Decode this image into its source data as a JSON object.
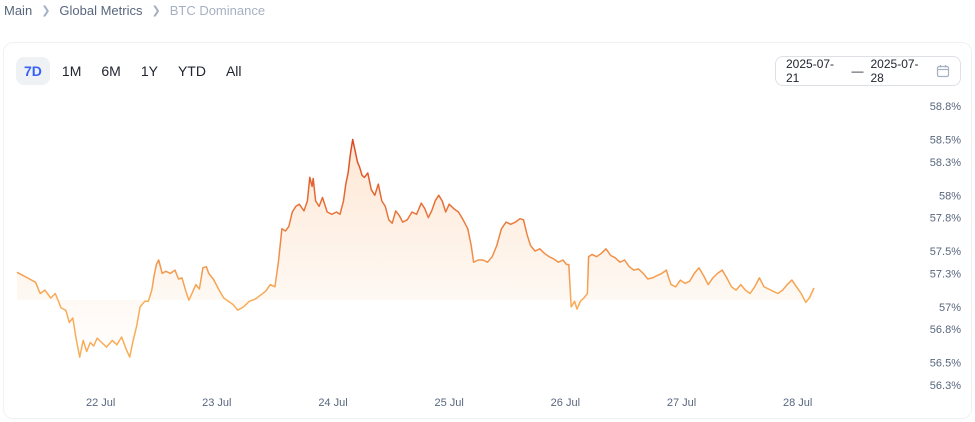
{
  "breadcrumb": {
    "items": [
      "Main",
      "Global Metrics"
    ],
    "current": "BTC Dominance"
  },
  "range_tabs": [
    {
      "label": "7D",
      "active": true
    },
    {
      "label": "1M",
      "active": false
    },
    {
      "label": "6M",
      "active": false
    },
    {
      "label": "1Y",
      "active": false
    },
    {
      "label": "YTD",
      "active": false
    },
    {
      "label": "All",
      "active": false
    }
  ],
  "date_range": {
    "start": "2025-07-21",
    "separator": "—",
    "end": "2025-07-28",
    "icon": "calendar-icon"
  },
  "colors": {
    "line_low": "#f9ac57",
    "line_high": "#d9401f",
    "fill": "#fde3cc",
    "active_tab": "#3861fb"
  },
  "chart_data": {
    "type": "line",
    "title": "",
    "xlabel": "",
    "ylabel": "",
    "x_range": [
      -0.72,
      7.07
    ],
    "ylim": [
      56.3,
      58.8
    ],
    "y_ticks": [
      {
        "value": 58.8,
        "label": "58.8%"
      },
      {
        "value": 58.5,
        "label": "58.5%"
      },
      {
        "value": 58.3,
        "label": "58.3%"
      },
      {
        "value": 58.0,
        "label": "58%"
      },
      {
        "value": 57.8,
        "label": "57.8%"
      },
      {
        "value": 57.5,
        "label": "57.5%"
      },
      {
        "value": 57.3,
        "label": "57.3%"
      },
      {
        "value": 57.0,
        "label": "57%"
      },
      {
        "value": 56.8,
        "label": "56.8%"
      },
      {
        "value": 56.5,
        "label": "56.5%"
      },
      {
        "value": 56.3,
        "label": "56.3%"
      }
    ],
    "x_ticks": [
      {
        "value": 0,
        "label": "22 Jul"
      },
      {
        "value": 1,
        "label": "23 Jul"
      },
      {
        "value": 2,
        "label": "24 Jul"
      },
      {
        "value": 3,
        "label": "25 Jul"
      },
      {
        "value": 4,
        "label": "26 Jul"
      },
      {
        "value": 5,
        "label": "27 Jul"
      },
      {
        "value": 6,
        "label": "28 Jul"
      }
    ],
    "grid": false,
    "legend": "none",
    "series": [
      {
        "points": [
          [
            -0.72,
            57.31
          ],
          [
            -0.63,
            57.26
          ],
          [
            -0.56,
            57.22
          ],
          [
            -0.52,
            57.12
          ],
          [
            -0.48,
            57.15
          ],
          [
            -0.43,
            57.08
          ],
          [
            -0.39,
            57.12
          ],
          [
            -0.34,
            56.99
          ],
          [
            -0.3,
            56.97
          ],
          [
            -0.27,
            56.86
          ],
          [
            -0.24,
            56.9
          ],
          [
            -0.21,
            56.71
          ],
          [
            -0.18,
            56.55
          ],
          [
            -0.15,
            56.7
          ],
          [
            -0.12,
            56.6
          ],
          [
            -0.09,
            56.68
          ],
          [
            -0.06,
            56.65
          ],
          [
            -0.03,
            56.72
          ],
          [
            0.0,
            56.69
          ],
          [
            0.05,
            56.64
          ],
          [
            0.1,
            56.7
          ],
          [
            0.14,
            56.66
          ],
          [
            0.18,
            56.73
          ],
          [
            0.22,
            56.62
          ],
          [
            0.25,
            56.55
          ],
          [
            0.28,
            56.7
          ],
          [
            0.31,
            56.83
          ],
          [
            0.34,
            57.0
          ],
          [
            0.38,
            57.05
          ],
          [
            0.41,
            57.05
          ],
          [
            0.44,
            57.15
          ],
          [
            0.46,
            57.28
          ],
          [
            0.48,
            57.38
          ],
          [
            0.5,
            57.42
          ],
          [
            0.53,
            57.3
          ],
          [
            0.56,
            57.32
          ],
          [
            0.6,
            57.3
          ],
          [
            0.64,
            57.33
          ],
          [
            0.67,
            57.25
          ],
          [
            0.7,
            57.26
          ],
          [
            0.73,
            57.15
          ],
          [
            0.76,
            57.06
          ],
          [
            0.79,
            57.13
          ],
          [
            0.82,
            57.2
          ],
          [
            0.85,
            57.16
          ],
          [
            0.88,
            57.35
          ],
          [
            0.91,
            57.36
          ],
          [
            0.93,
            57.3
          ],
          [
            0.97,
            57.25
          ],
          [
            1.02,
            57.15
          ],
          [
            1.06,
            57.08
          ],
          [
            1.1,
            57.05
          ],
          [
            1.14,
            57.02
          ],
          [
            1.18,
            56.97
          ],
          [
            1.23,
            57.0
          ],
          [
            1.28,
            57.05
          ],
          [
            1.33,
            57.07
          ],
          [
            1.37,
            57.1
          ],
          [
            1.42,
            57.14
          ],
          [
            1.46,
            57.2
          ],
          [
            1.5,
            57.18
          ],
          [
            1.53,
            57.4
          ],
          [
            1.56,
            57.7
          ],
          [
            1.59,
            57.68
          ],
          [
            1.62,
            57.72
          ],
          [
            1.65,
            57.85
          ],
          [
            1.68,
            57.9
          ],
          [
            1.71,
            57.92
          ],
          [
            1.75,
            57.86
          ],
          [
            1.78,
            57.95
          ],
          [
            1.8,
            58.16
          ],
          [
            1.82,
            58.08
          ],
          [
            1.83,
            58.15
          ],
          [
            1.85,
            57.95
          ],
          [
            1.88,
            57.9
          ],
          [
            1.91,
            57.98
          ],
          [
            1.95,
            57.85
          ],
          [
            1.99,
            57.83
          ],
          [
            2.03,
            57.85
          ],
          [
            2.06,
            57.83
          ],
          [
            2.09,
            57.95
          ],
          [
            2.11,
            58.1
          ],
          [
            2.13,
            58.2
          ],
          [
            2.15,
            58.37
          ],
          [
            2.17,
            58.5
          ],
          [
            2.19,
            58.4
          ],
          [
            2.21,
            58.3
          ],
          [
            2.23,
            58.25
          ],
          [
            2.25,
            58.18
          ],
          [
            2.27,
            58.16
          ],
          [
            2.3,
            58.2
          ],
          [
            2.33,
            58.05
          ],
          [
            2.36,
            58.0
          ],
          [
            2.39,
            58.1
          ],
          [
            2.42,
            57.95
          ],
          [
            2.45,
            57.9
          ],
          [
            2.48,
            57.78
          ],
          [
            2.51,
            57.75
          ],
          [
            2.54,
            57.86
          ],
          [
            2.57,
            57.82
          ],
          [
            2.6,
            57.76
          ],
          [
            2.64,
            57.78
          ],
          [
            2.68,
            57.85
          ],
          [
            2.72,
            57.83
          ],
          [
            2.76,
            57.93
          ],
          [
            2.79,
            57.88
          ],
          [
            2.82,
            57.8
          ],
          [
            2.85,
            57.86
          ],
          [
            2.88,
            57.95
          ],
          [
            2.91,
            58.0
          ],
          [
            2.94,
            57.95
          ],
          [
            2.97,
            57.85
          ],
          [
            3.0,
            57.92
          ],
          [
            3.04,
            57.88
          ],
          [
            3.08,
            57.85
          ],
          [
            3.12,
            57.78
          ],
          [
            3.16,
            57.7
          ],
          [
            3.19,
            57.55
          ],
          [
            3.21,
            57.4
          ],
          [
            3.25,
            57.42
          ],
          [
            3.29,
            57.42
          ],
          [
            3.33,
            57.4
          ],
          [
            3.37,
            57.45
          ],
          [
            3.41,
            57.55
          ],
          [
            3.45,
            57.7
          ],
          [
            3.49,
            57.76
          ],
          [
            3.53,
            57.74
          ],
          [
            3.57,
            57.76
          ],
          [
            3.61,
            57.79
          ],
          [
            3.64,
            57.78
          ],
          [
            3.67,
            57.65
          ],
          [
            3.7,
            57.55
          ],
          [
            3.74,
            57.5
          ],
          [
            3.78,
            57.52
          ],
          [
            3.82,
            57.48
          ],
          [
            3.86,
            57.45
          ],
          [
            3.9,
            57.43
          ],
          [
            3.94,
            57.4
          ],
          [
            3.98,
            57.42
          ],
          [
            4.01,
            57.38
          ],
          [
            4.03,
            57.38
          ],
          [
            4.05,
            57.0
          ],
          [
            4.08,
            57.05
          ],
          [
            4.1,
            56.98
          ],
          [
            4.13,
            57.05
          ],
          [
            4.16,
            57.08
          ],
          [
            4.19,
            57.12
          ],
          [
            4.2,
            57.45
          ],
          [
            4.23,
            57.47
          ],
          [
            4.27,
            57.45
          ],
          [
            4.31,
            57.48
          ],
          [
            4.35,
            57.52
          ],
          [
            4.39,
            57.46
          ],
          [
            4.43,
            57.44
          ],
          [
            4.47,
            57.4
          ],
          [
            4.51,
            57.42
          ],
          [
            4.55,
            57.36
          ],
          [
            4.59,
            57.33
          ],
          [
            4.63,
            57.34
          ],
          [
            4.67,
            57.3
          ],
          [
            4.71,
            57.25
          ],
          [
            4.75,
            57.26
          ],
          [
            4.79,
            57.28
          ],
          [
            4.83,
            57.3
          ],
          [
            4.87,
            57.33
          ],
          [
            4.89,
            57.26
          ],
          [
            4.91,
            57.2
          ],
          [
            4.95,
            57.18
          ],
          [
            4.99,
            57.24
          ],
          [
            5.03,
            57.21
          ],
          [
            5.07,
            57.23
          ],
          [
            5.11,
            57.3
          ],
          [
            5.15,
            57.35
          ],
          [
            5.19,
            57.28
          ],
          [
            5.23,
            57.2
          ],
          [
            5.27,
            57.26
          ],
          [
            5.31,
            57.3
          ],
          [
            5.35,
            57.33
          ],
          [
            5.39,
            57.26
          ],
          [
            5.43,
            57.18
          ],
          [
            5.47,
            57.15
          ],
          [
            5.51,
            57.2
          ],
          [
            5.55,
            57.15
          ],
          [
            5.59,
            57.12
          ],
          [
            5.63,
            57.18
          ],
          [
            5.67,
            57.26
          ],
          [
            5.71,
            57.18
          ],
          [
            5.75,
            57.16
          ],
          [
            5.79,
            57.14
          ],
          [
            5.83,
            57.12
          ],
          [
            5.87,
            57.15
          ],
          [
            5.91,
            57.2
          ],
          [
            5.95,
            57.24
          ],
          [
            5.99,
            57.18
          ],
          [
            6.03,
            57.12
          ],
          [
            6.07,
            57.04
          ],
          [
            6.1,
            57.08
          ],
          [
            6.14,
            57.17
          ]
        ]
      }
    ]
  }
}
